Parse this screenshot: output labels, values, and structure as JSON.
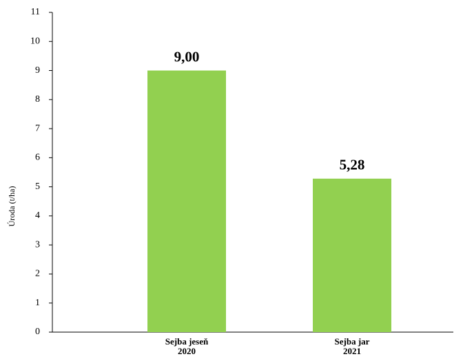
{
  "chart_data": {
    "type": "bar",
    "y_label": "Úroda (t/ha)",
    "categories": [
      [
        "Sejba jeseň",
        "2020"
      ],
      [
        "Sejba jar",
        "2021"
      ]
    ],
    "values": [
      9.0,
      5.28
    ],
    "value_labels": [
      "9,00",
      "5,28"
    ],
    "color": "#92d050",
    "ylim": [
      0,
      11
    ],
    "yticks": [
      0,
      1,
      2,
      3,
      4,
      5,
      6,
      7,
      8,
      9,
      10,
      11
    ]
  }
}
